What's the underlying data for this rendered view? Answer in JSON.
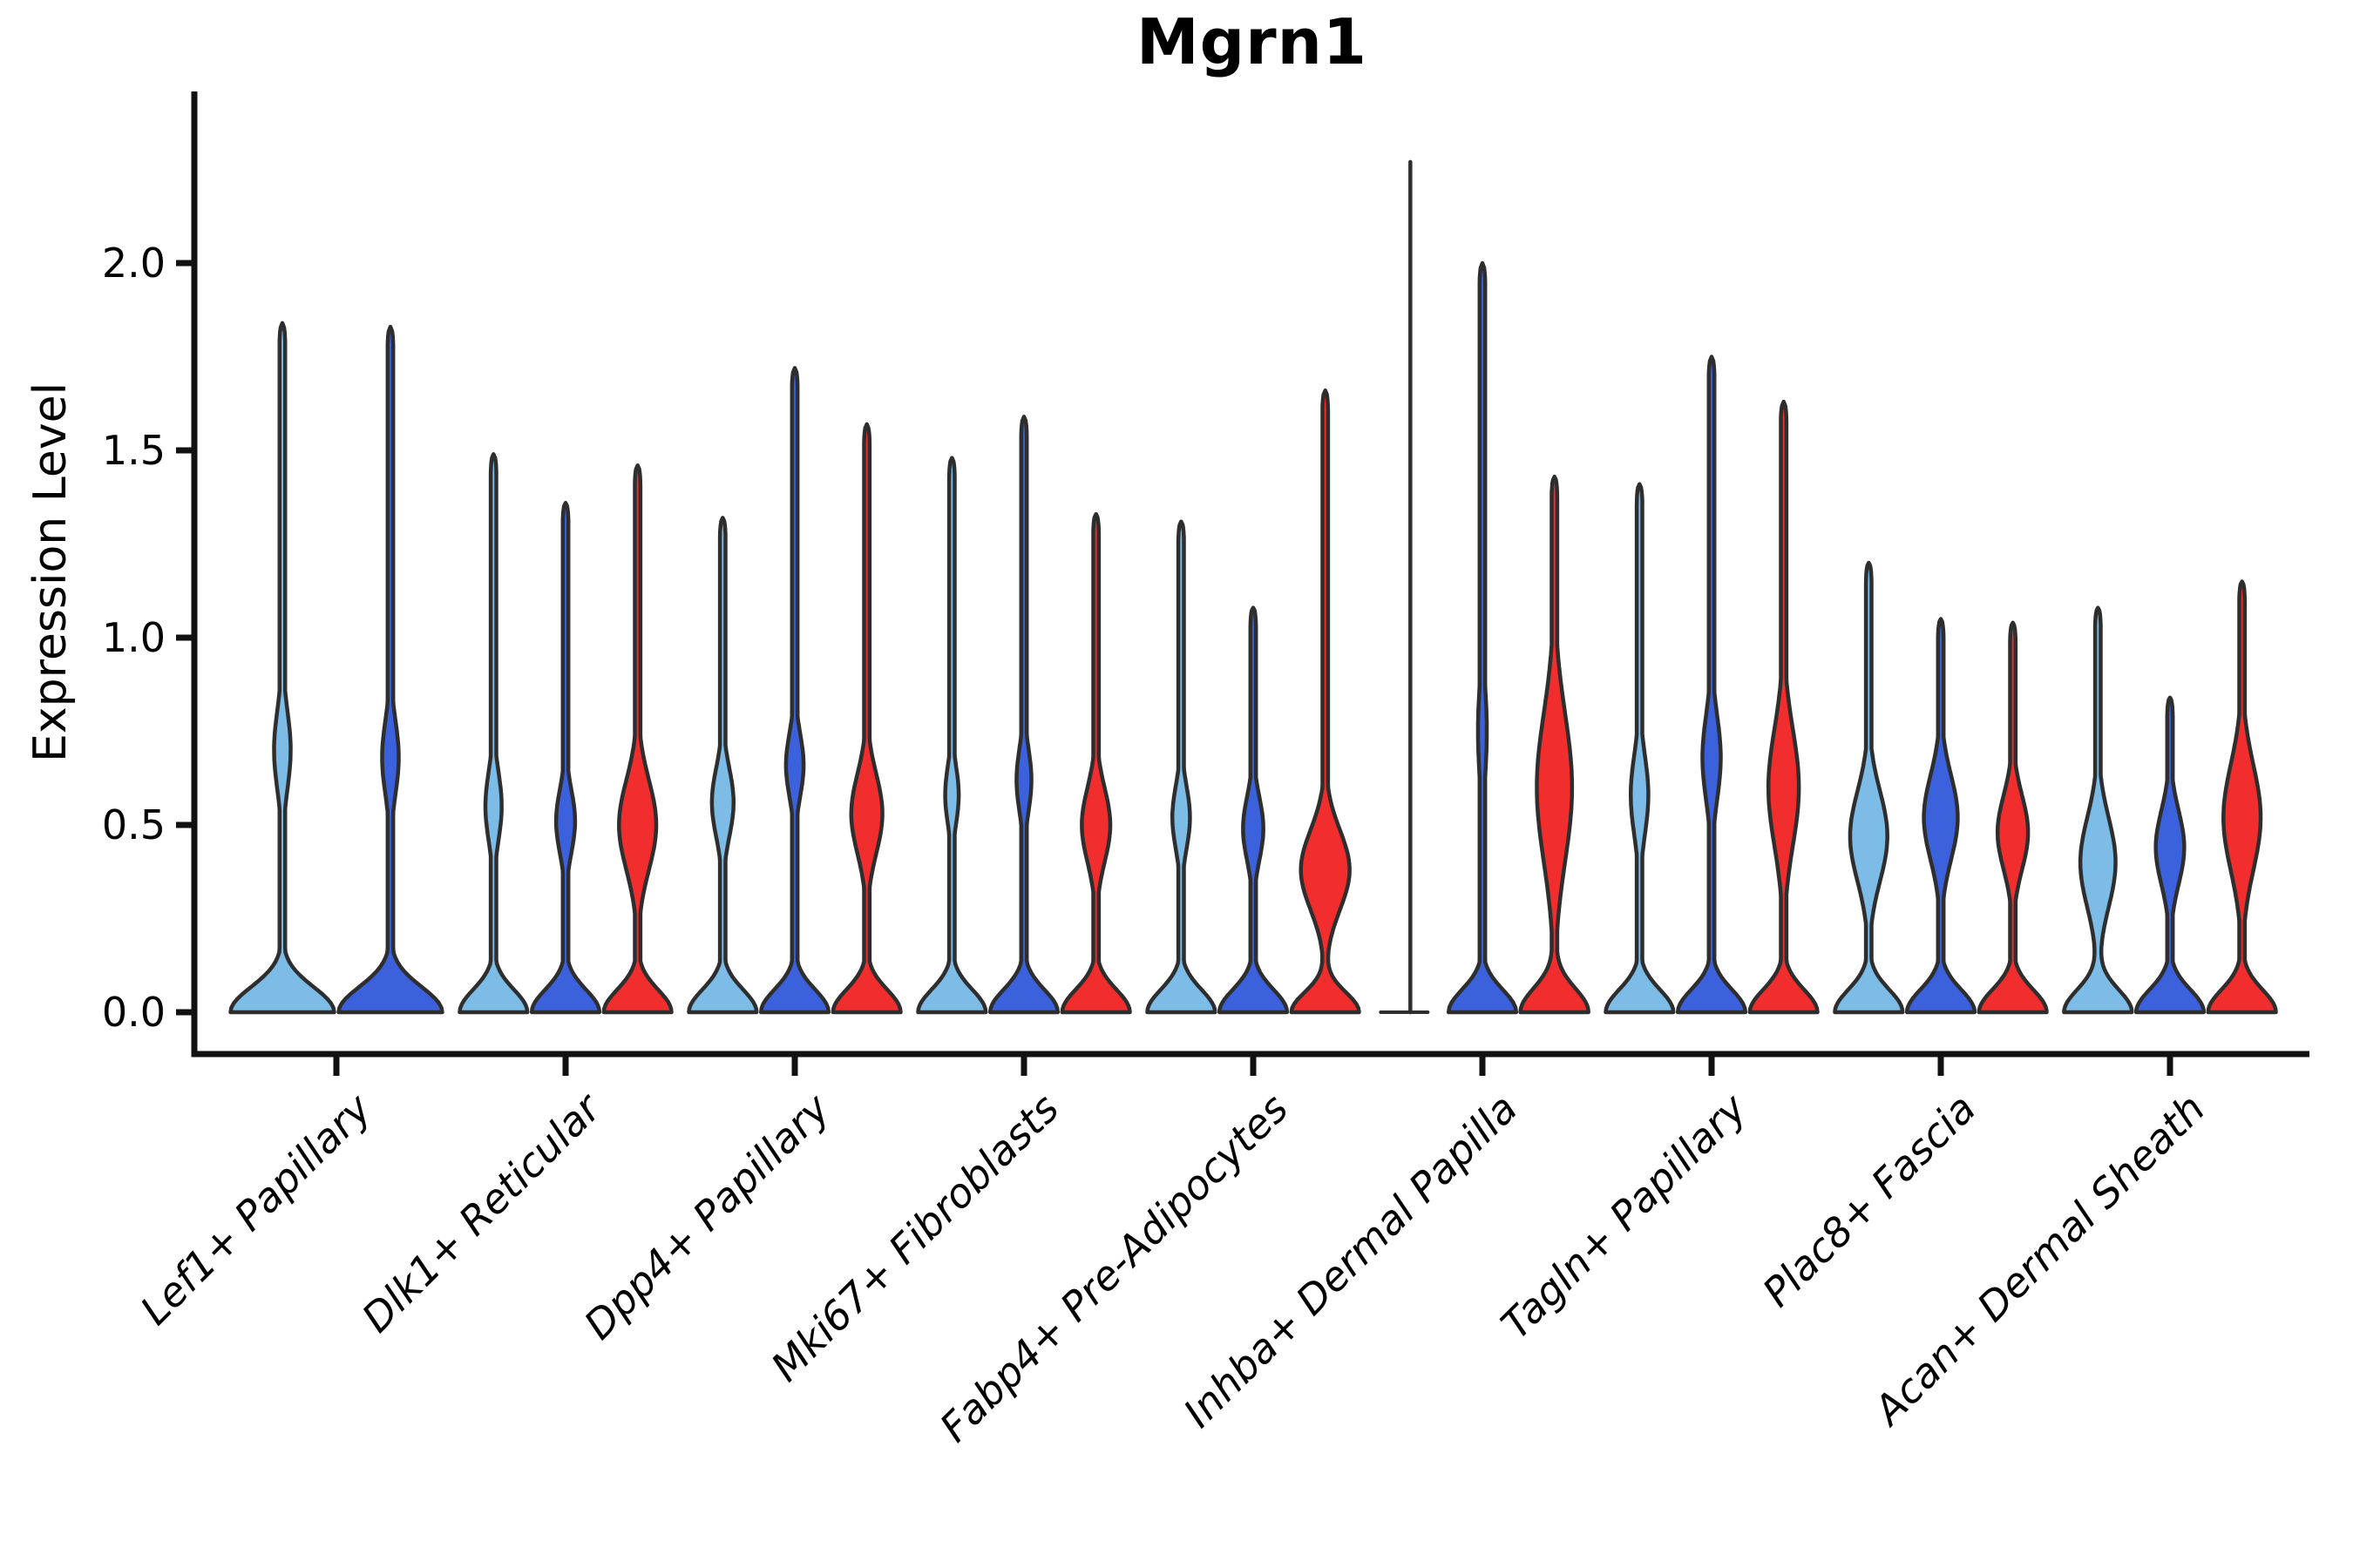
{
  "chart_data": {
    "type": "violin",
    "title": "Mgrn1",
    "ylabel": "Expression Level",
    "xlabel": "",
    "ylim": [
      -0.13,
      2.46
    ],
    "yticks": [
      0.0,
      0.5,
      1.0,
      1.5,
      2.0
    ],
    "grid": false,
    "legend": "none",
    "outline_color": "#2e2e2e",
    "axis_color": "#111111",
    "splits": [
      {
        "key": "light_blue",
        "color": "#7cbce6"
      },
      {
        "key": "dark_blue",
        "color": "#3b61dd"
      },
      {
        "key": "red",
        "color": "#f22d2d"
      }
    ],
    "categories": [
      {
        "label": "Lef1+ Papillary",
        "violins": [
          {
            "split": "light_blue",
            "max": 1.84,
            "mode": 0.7,
            "bulge_sigma": 0.15,
            "bulge_amp": 0.16,
            "base_decay": 0.095
          },
          {
            "split": "dark_blue",
            "max": 1.83,
            "mode": 0.68,
            "bulge_sigma": 0.14,
            "bulge_amp": 0.16,
            "base_decay": 0.095
          }
        ]
      },
      {
        "label": "Dlk1+ Reticular",
        "violins": [
          {
            "split": "light_blue",
            "max": 1.49,
            "mode": 0.55,
            "bulge_sigma": 0.13,
            "bulge_amp": 0.24,
            "base_decay": 0.085
          },
          {
            "split": "dark_blue",
            "max": 1.36,
            "mode": 0.51,
            "bulge_sigma": 0.12,
            "bulge_amp": 0.28,
            "base_decay": 0.085
          },
          {
            "split": "red",
            "max": 1.46,
            "mode": 0.5,
            "bulge_sigma": 0.17,
            "bulge_amp": 0.55,
            "base_decay": 0.085
          }
        ]
      },
      {
        "label": "Dpp4+ Papillary",
        "violins": [
          {
            "split": "light_blue",
            "max": 1.32,
            "mode": 0.56,
            "bulge_sigma": 0.13,
            "bulge_amp": 0.32,
            "base_decay": 0.085
          },
          {
            "split": "dark_blue",
            "max": 1.72,
            "mode": 0.66,
            "bulge_sigma": 0.12,
            "bulge_amp": 0.26,
            "base_decay": 0.085
          },
          {
            "split": "red",
            "max": 1.57,
            "mode": 0.53,
            "bulge_sigma": 0.15,
            "bulge_amp": 0.46,
            "base_decay": 0.085
          }
        ]
      },
      {
        "label": "Mki67+ Fibroblasts",
        "violins": [
          {
            "split": "light_blue",
            "max": 1.48,
            "mode": 0.58,
            "bulge_sigma": 0.11,
            "bulge_amp": 0.2,
            "base_decay": 0.085
          },
          {
            "split": "dark_blue",
            "max": 1.59,
            "mode": 0.62,
            "bulge_sigma": 0.12,
            "bulge_amp": 0.22,
            "base_decay": 0.085
          },
          {
            "split": "red",
            "max": 1.33,
            "mode": 0.5,
            "bulge_sigma": 0.14,
            "bulge_amp": 0.42,
            "base_decay": 0.085
          }
        ]
      },
      {
        "label": "Fabp4+ Pre-Adipocytes",
        "violins": [
          {
            "split": "light_blue",
            "max": 1.31,
            "mode": 0.52,
            "bulge_sigma": 0.12,
            "bulge_amp": 0.26,
            "base_decay": 0.085
          },
          {
            "split": "dark_blue",
            "max": 1.08,
            "mode": 0.49,
            "bulge_sigma": 0.12,
            "bulge_amp": 0.3,
            "base_decay": 0.085
          },
          {
            "split": "red",
            "max": 1.66,
            "mode": 0.38,
            "bulge_sigma": 0.15,
            "bulge_amp": 0.72,
            "base_decay": 0.075
          }
        ]
      },
      {
        "label": "Inhba+ Dermal Papilla",
        "violins": [
          {
            "split": "light_blue",
            "max": 2.27,
            "degenerate": true
          },
          {
            "split": "dark_blue",
            "max": 2.0,
            "mode": 0.75,
            "bulge_sigma": 0.18,
            "bulge_amp": 0.13,
            "base_decay": 0.085
          },
          {
            "split": "red",
            "max": 1.43,
            "mode": 0.6,
            "bulge_sigma": 0.28,
            "bulge_amp": 0.52,
            "base_decay": 0.09
          }
        ]
      },
      {
        "label": "Tagln+ Papillary",
        "violins": [
          {
            "split": "light_blue",
            "max": 1.41,
            "mode": 0.58,
            "bulge_sigma": 0.15,
            "bulge_amp": 0.26,
            "base_decay": 0.085
          },
          {
            "split": "dark_blue",
            "max": 1.75,
            "mode": 0.68,
            "bulge_sigma": 0.16,
            "bulge_amp": 0.27,
            "base_decay": 0.085
          },
          {
            "split": "red",
            "max": 1.63,
            "mode": 0.6,
            "bulge_sigma": 0.22,
            "bulge_amp": 0.45,
            "base_decay": 0.085
          }
        ]
      },
      {
        "label": "Plac8+ Fascia",
        "violins": [
          {
            "split": "light_blue",
            "max": 1.2,
            "mode": 0.47,
            "bulge_sigma": 0.17,
            "bulge_amp": 0.55,
            "base_decay": 0.085
          },
          {
            "split": "dark_blue",
            "max": 1.05,
            "mode": 0.52,
            "bulge_sigma": 0.16,
            "bulge_amp": 0.5,
            "base_decay": 0.085
          },
          {
            "split": "red",
            "max": 1.04,
            "mode": 0.48,
            "bulge_sigma": 0.14,
            "bulge_amp": 0.45,
            "base_decay": 0.085
          }
        ]
      },
      {
        "label": "Acan+ Dermal Sheath",
        "violins": [
          {
            "split": "light_blue",
            "max": 1.08,
            "mode": 0.4,
            "bulge_sigma": 0.17,
            "bulge_amp": 0.52,
            "base_decay": 0.085
          },
          {
            "split": "dark_blue",
            "max": 0.84,
            "mode": 0.44,
            "bulge_sigma": 0.14,
            "bulge_amp": 0.42,
            "base_decay": 0.085
          },
          {
            "split": "red",
            "max": 1.15,
            "mode": 0.52,
            "bulge_sigma": 0.2,
            "bulge_amp": 0.55,
            "base_decay": 0.085
          }
        ]
      }
    ]
  }
}
